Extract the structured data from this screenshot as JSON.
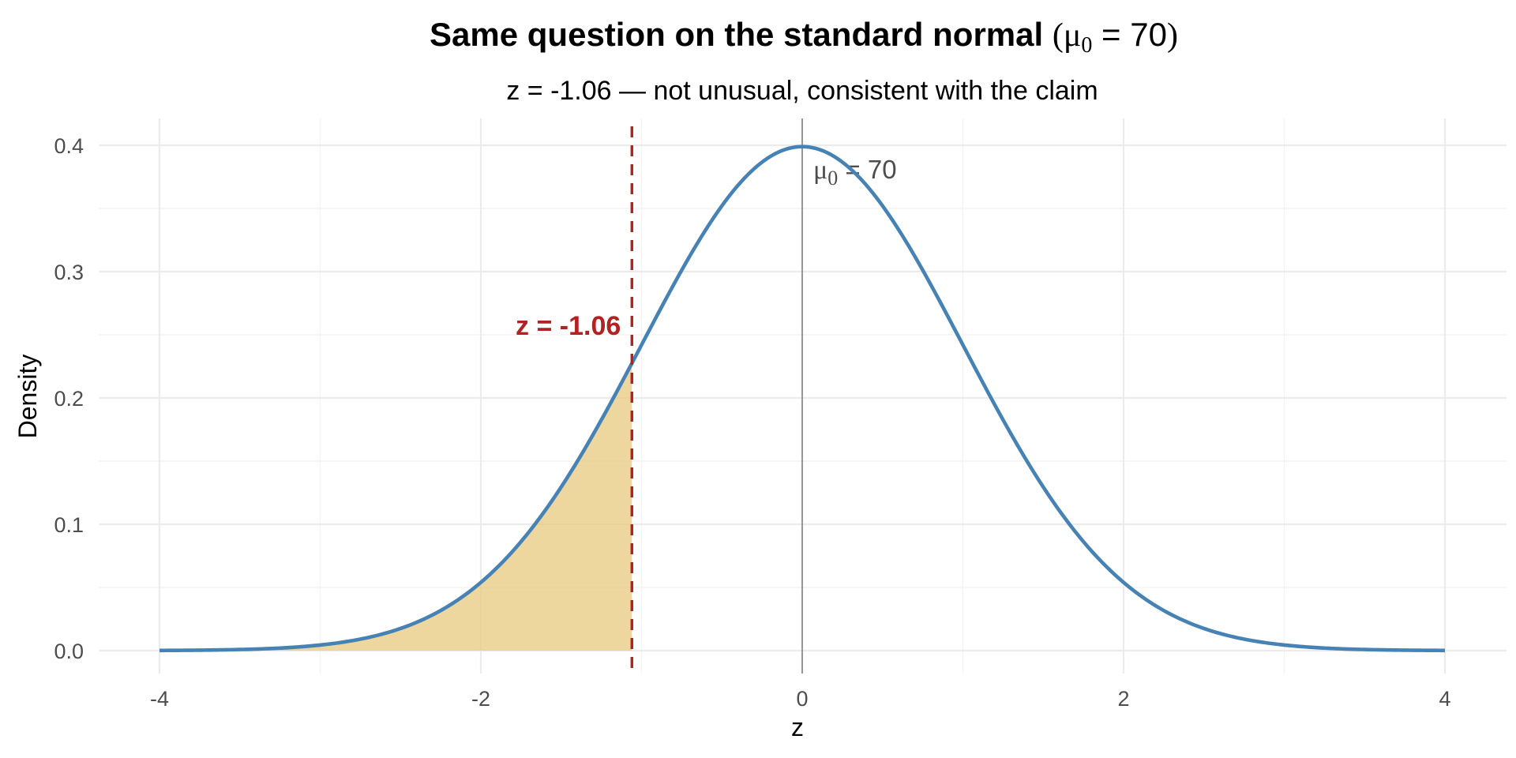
{
  "chart_data": {
    "type": "area",
    "title_prefix": "Same question on the standard normal ",
    "title_symbol": "μ",
    "title_sub": "0",
    "title_suffix": " = 70",
    "subtitle": "z = -1.06 — not unusual, consistent with the claim",
    "xlabel": "z",
    "ylabel": "Density",
    "xlim": [
      -4,
      4
    ],
    "ylim": [
      0,
      0.4
    ],
    "x_ticks": [
      -4,
      -2,
      0,
      2,
      4
    ],
    "x_tick_labels": [
      "-4",
      "-2",
      "0",
      "2",
      "4"
    ],
    "y_ticks": [
      0.0,
      0.1,
      0.2,
      0.3,
      0.4
    ],
    "y_tick_labels": [
      "0.0",
      "0.1",
      "0.2",
      "0.3",
      "0.4"
    ],
    "grid": true,
    "series": [
      {
        "distribution": "standard normal density",
        "x": [
          -4,
          -3.5,
          -3,
          -2.5,
          -2,
          -1.5,
          -1,
          -0.5,
          0,
          0.5,
          1,
          1.5,
          2,
          2.5,
          3,
          3.5,
          4
        ],
        "values": [
          0.0001,
          0.0009,
          0.0044,
          0.0175,
          0.054,
          0.1295,
          0.242,
          0.3521,
          0.3989,
          0.3521,
          0.242,
          0.1295,
          0.054,
          0.0175,
          0.0044,
          0.0009,
          0.0001
        ],
        "color": "#4682b4"
      }
    ],
    "shaded_region": {
      "from": -4,
      "to": -1.06,
      "color": "#e8c87a"
    },
    "z_line": {
      "x": -1.06,
      "color": "#b22222",
      "label": "z = -1.06"
    },
    "mean_line": {
      "x": 0,
      "color": "#808080",
      "label_symbol": "μ",
      "label_sub": "0",
      "label_suffix": " = 70"
    }
  }
}
